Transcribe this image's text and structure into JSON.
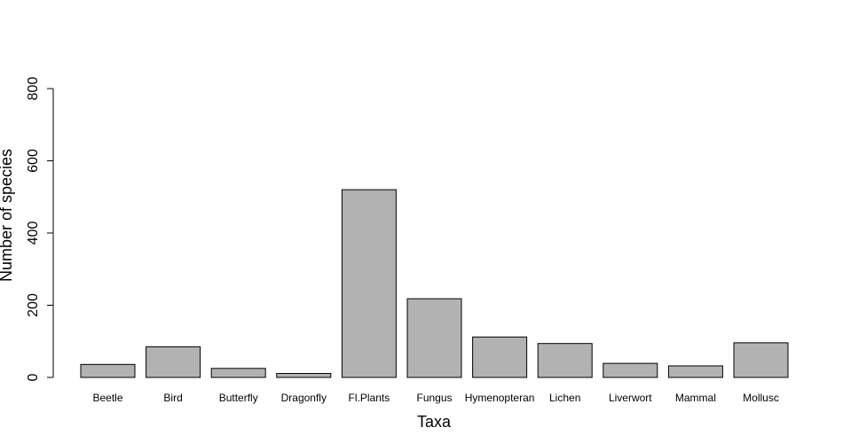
{
  "chart_data": {
    "type": "bar",
    "title": "",
    "xlabel": "Taxa",
    "ylabel": "Number of species",
    "ylim": [
      0,
      800
    ],
    "yticks": [
      0,
      200,
      400,
      600,
      800
    ],
    "categories": [
      "Beetle",
      "Bird",
      "Butterfly",
      "Dragonfly",
      "Fl.Plants",
      "Fungus",
      "Hymenopteran",
      "Lichen",
      "Liverwort",
      "Mammal",
      "Mollusc"
    ],
    "values": [
      36,
      85,
      25,
      11,
      520,
      218,
      112,
      94,
      39,
      32,
      96
    ],
    "bar_color": "#b2b2b2",
    "bar_stroke": "#000000",
    "grid": false
  }
}
